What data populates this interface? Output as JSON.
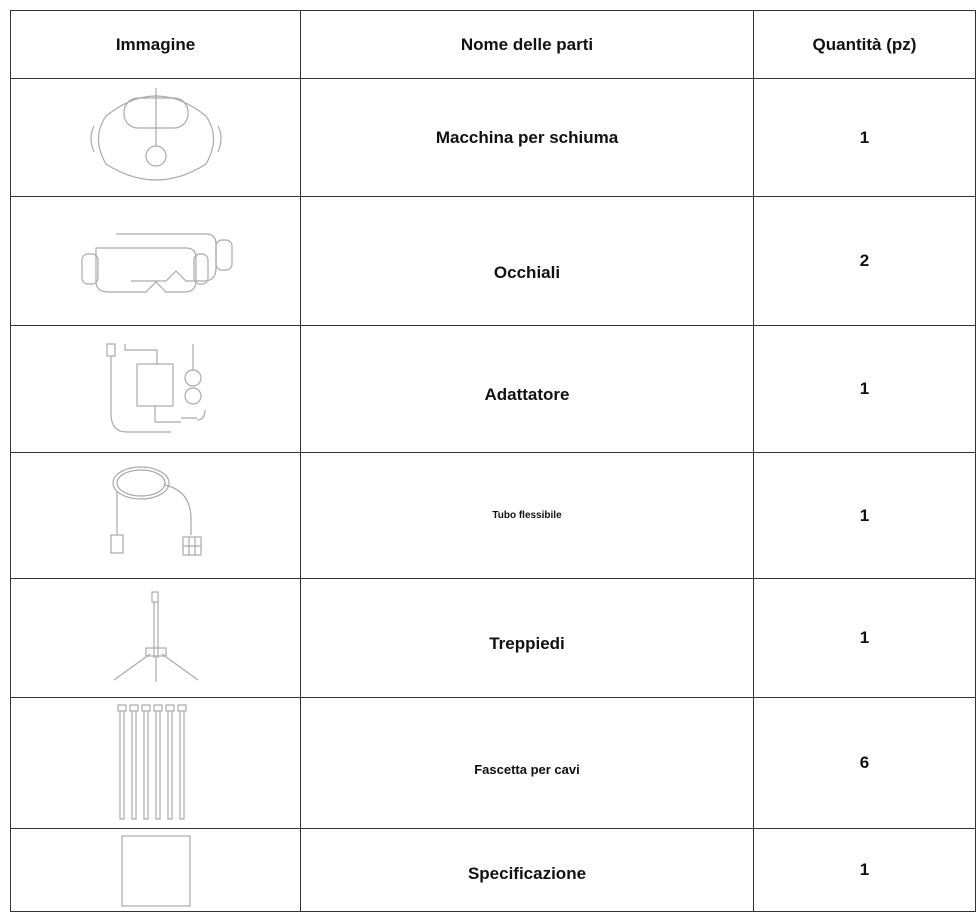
{
  "table": {
    "header": [
      "Immagine",
      "Nome delle parti",
      "Quantità (pz)"
    ],
    "rows": [
      [
        "Macchina per schiuma",
        "1"
      ],
      [
        "Occhiali",
        "2"
      ],
      [
        "Adattatore",
        "1"
      ],
      [
        "Tubo flessibile",
        "1"
      ],
      [
        "Treppiedi",
        "1"
      ],
      [
        "Fascetta per cavi",
        "6"
      ],
      [
        "Specificazione",
        "1"
      ]
    ]
  }
}
